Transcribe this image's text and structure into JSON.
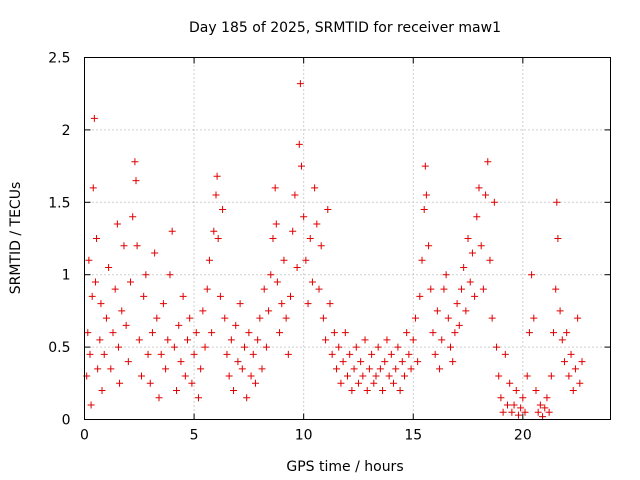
{
  "chart_data": {
    "type": "scatter",
    "title": "Day 185 of 2025, SRMTID for receiver maw1",
    "xlabel": "GPS time / hours",
    "ylabel": "SRMTID / TECUs",
    "xlim": [
      0,
      24
    ],
    "ylim": [
      0,
      2.5
    ],
    "xticks": [
      "0",
      "5",
      "10",
      "15",
      "20"
    ],
    "xtick_values": [
      0,
      5,
      10,
      15,
      20
    ],
    "yticks": [
      "0",
      "0.5",
      "1",
      "1.5",
      "2",
      "2.5"
    ],
    "ytick_values": [
      0,
      0.5,
      1,
      1.5,
      2,
      2.5
    ],
    "grid": true,
    "marker": "+",
    "color": "#e00000",
    "series": [
      {
        "name": "maw1",
        "points": [
          [
            0.1,
            0.3
          ],
          [
            0.15,
            0.6
          ],
          [
            0.2,
            1.1
          ],
          [
            0.25,
            0.45
          ],
          [
            0.3,
            0.1
          ],
          [
            0.35,
            0.85
          ],
          [
            0.4,
            1.6
          ],
          [
            0.45,
            2.08
          ],
          [
            0.5,
            0.95
          ],
          [
            0.55,
            1.25
          ],
          [
            0.6,
            0.35
          ],
          [
            0.7,
            0.55
          ],
          [
            0.75,
            0.8
          ],
          [
            0.8,
            0.2
          ],
          [
            0.9,
            0.45
          ],
          [
            1.0,
            0.7
          ],
          [
            1.1,
            1.05
          ],
          [
            1.2,
            0.35
          ],
          [
            1.3,
            0.6
          ],
          [
            1.4,
            0.9
          ],
          [
            1.5,
            1.35
          ],
          [
            1.55,
            0.5
          ],
          [
            1.6,
            0.25
          ],
          [
            1.7,
            0.75
          ],
          [
            1.8,
            1.2
          ],
          [
            1.9,
            0.65
          ],
          [
            2.0,
            0.4
          ],
          [
            2.1,
            0.95
          ],
          [
            2.2,
            1.4
          ],
          [
            2.3,
            1.78
          ],
          [
            2.35,
            1.65
          ],
          [
            2.4,
            1.2
          ],
          [
            2.5,
            0.55
          ],
          [
            2.6,
            0.3
          ],
          [
            2.7,
            0.85
          ],
          [
            2.8,
            1.0
          ],
          [
            2.9,
            0.45
          ],
          [
            3.0,
            0.25
          ],
          [
            3.1,
            0.6
          ],
          [
            3.2,
            1.15
          ],
          [
            3.3,
            0.7
          ],
          [
            3.4,
            0.15
          ],
          [
            3.5,
            0.45
          ],
          [
            3.6,
            0.8
          ],
          [
            3.7,
            0.35
          ],
          [
            3.8,
            0.55
          ],
          [
            3.9,
            1.0
          ],
          [
            4.0,
            1.3
          ],
          [
            4.1,
            0.5
          ],
          [
            4.2,
            0.2
          ],
          [
            4.3,
            0.65
          ],
          [
            4.4,
            0.4
          ],
          [
            4.5,
            0.85
          ],
          [
            4.6,
            0.3
          ],
          [
            4.7,
            0.55
          ],
          [
            4.8,
            0.7
          ],
          [
            4.9,
            0.25
          ],
          [
            5.0,
            0.45
          ],
          [
            5.1,
            0.6
          ],
          [
            5.2,
            0.15
          ],
          [
            5.3,
            0.35
          ],
          [
            5.4,
            0.75
          ],
          [
            5.5,
            0.5
          ],
          [
            5.6,
            0.9
          ],
          [
            5.7,
            1.1
          ],
          [
            5.8,
            0.6
          ],
          [
            5.9,
            1.3
          ],
          [
            6.0,
            1.55
          ],
          [
            6.05,
            1.68
          ],
          [
            6.1,
            1.25
          ],
          [
            6.2,
            0.85
          ],
          [
            6.3,
            1.45
          ],
          [
            6.4,
            0.7
          ],
          [
            6.5,
            0.45
          ],
          [
            6.6,
            0.3
          ],
          [
            6.7,
            0.55
          ],
          [
            6.8,
            0.2
          ],
          [
            6.9,
            0.65
          ],
          [
            7.0,
            0.4
          ],
          [
            7.1,
            0.8
          ],
          [
            7.2,
            0.35
          ],
          [
            7.3,
            0.5
          ],
          [
            7.4,
            0.15
          ],
          [
            7.5,
            0.6
          ],
          [
            7.6,
            0.3
          ],
          [
            7.7,
            0.45
          ],
          [
            7.8,
            0.25
          ],
          [
            7.9,
            0.55
          ],
          [
            8.0,
            0.7
          ],
          [
            8.1,
            0.35
          ],
          [
            8.2,
            0.9
          ],
          [
            8.3,
            0.5
          ],
          [
            8.4,
            0.75
          ],
          [
            8.5,
            1.0
          ],
          [
            8.6,
            1.25
          ],
          [
            8.7,
            1.6
          ],
          [
            8.75,
            1.35
          ],
          [
            8.8,
            0.95
          ],
          [
            8.9,
            0.6
          ],
          [
            9.0,
            0.8
          ],
          [
            9.1,
            1.1
          ],
          [
            9.2,
            0.7
          ],
          [
            9.3,
            0.45
          ],
          [
            9.4,
            0.85
          ],
          [
            9.5,
            1.3
          ],
          [
            9.6,
            1.55
          ],
          [
            9.7,
            1.05
          ],
          [
            9.8,
            1.9
          ],
          [
            9.85,
            2.32
          ],
          [
            9.9,
            1.75
          ],
          [
            10.0,
            1.4
          ],
          [
            10.1,
            1.1
          ],
          [
            10.2,
            0.8
          ],
          [
            10.3,
            1.25
          ],
          [
            10.4,
            0.95
          ],
          [
            10.5,
            1.6
          ],
          [
            10.6,
            1.35
          ],
          [
            10.7,
            0.9
          ],
          [
            10.8,
            1.2
          ],
          [
            10.9,
            0.7
          ],
          [
            11.0,
            0.55
          ],
          [
            11.1,
            1.45
          ],
          [
            11.2,
            0.8
          ],
          [
            11.3,
            0.45
          ],
          [
            11.4,
            0.6
          ],
          [
            11.5,
            0.35
          ],
          [
            11.6,
            0.5
          ],
          [
            11.7,
            0.25
          ],
          [
            11.8,
            0.4
          ],
          [
            11.9,
            0.6
          ],
          [
            12.0,
            0.3
          ],
          [
            12.1,
            0.45
          ],
          [
            12.2,
            0.2
          ],
          [
            12.3,
            0.35
          ],
          [
            12.4,
            0.5
          ],
          [
            12.5,
            0.25
          ],
          [
            12.6,
            0.4
          ],
          [
            12.7,
            0.3
          ],
          [
            12.8,
            0.55
          ],
          [
            12.9,
            0.2
          ],
          [
            13.0,
            0.35
          ],
          [
            13.1,
            0.45
          ],
          [
            13.2,
            0.25
          ],
          [
            13.3,
            0.3
          ],
          [
            13.4,
            0.5
          ],
          [
            13.5,
            0.35
          ],
          [
            13.6,
            0.2
          ],
          [
            13.7,
            0.4
          ],
          [
            13.8,
            0.55
          ],
          [
            13.9,
            0.3
          ],
          [
            14.0,
            0.45
          ],
          [
            14.1,
            0.25
          ],
          [
            14.2,
            0.35
          ],
          [
            14.3,
            0.5
          ],
          [
            14.4,
            0.2
          ],
          [
            14.5,
            0.4
          ],
          [
            14.6,
            0.3
          ],
          [
            14.7,
            0.6
          ],
          [
            14.8,
            0.45
          ],
          [
            14.9,
            0.35
          ],
          [
            15.0,
            0.55
          ],
          [
            15.1,
            0.7
          ],
          [
            15.2,
            0.4
          ],
          [
            15.3,
            0.85
          ],
          [
            15.4,
            1.1
          ],
          [
            15.5,
            1.45
          ],
          [
            15.55,
            1.75
          ],
          [
            15.6,
            1.55
          ],
          [
            15.7,
            1.2
          ],
          [
            15.8,
            0.9
          ],
          [
            15.9,
            0.6
          ],
          [
            16.0,
            0.45
          ],
          [
            16.1,
            0.75
          ],
          [
            16.2,
            0.35
          ],
          [
            16.3,
            0.55
          ],
          [
            16.4,
            0.9
          ],
          [
            16.5,
            1.0
          ],
          [
            16.6,
            0.7
          ],
          [
            16.7,
            0.5
          ],
          [
            16.8,
            0.4
          ],
          [
            16.9,
            0.6
          ],
          [
            17.0,
            0.8
          ],
          [
            17.1,
            0.65
          ],
          [
            17.2,
            0.9
          ],
          [
            17.3,
            1.05
          ],
          [
            17.4,
            0.75
          ],
          [
            17.5,
            1.25
          ],
          [
            17.6,
            0.95
          ],
          [
            17.7,
            1.15
          ],
          [
            17.8,
            0.85
          ],
          [
            17.9,
            1.4
          ],
          [
            18.0,
            1.6
          ],
          [
            18.1,
            1.2
          ],
          [
            18.2,
            0.9
          ],
          [
            18.3,
            1.55
          ],
          [
            18.4,
            1.78
          ],
          [
            18.5,
            1.1
          ],
          [
            18.6,
            0.7
          ],
          [
            18.7,
            1.5
          ],
          [
            18.8,
            0.5
          ],
          [
            18.9,
            0.3
          ],
          [
            19.0,
            0.15
          ],
          [
            19.1,
            0.05
          ],
          [
            19.2,
            0.45
          ],
          [
            19.3,
            0.1
          ],
          [
            19.4,
            0.25
          ],
          [
            19.5,
            0.05
          ],
          [
            19.6,
            0.1
          ],
          [
            19.7,
            0.2
          ],
          [
            19.8,
            0.03
          ],
          [
            19.9,
            0.08
          ],
          [
            20.0,
            0.15
          ],
          [
            20.1,
            0.05
          ],
          [
            20.2,
            0.3
          ],
          [
            20.3,
            0.6
          ],
          [
            20.4,
            1.0
          ],
          [
            20.5,
            0.7
          ],
          [
            20.6,
            0.2
          ],
          [
            20.7,
            0.05
          ],
          [
            20.8,
            0.1
          ],
          [
            20.9,
            0.02
          ],
          [
            21.0,
            0.08
          ],
          [
            21.1,
            0.15
          ],
          [
            21.2,
            0.05
          ],
          [
            21.3,
            0.3
          ],
          [
            21.4,
            0.6
          ],
          [
            21.5,
            0.9
          ],
          [
            21.55,
            1.5
          ],
          [
            21.6,
            1.25
          ],
          [
            21.7,
            0.75
          ],
          [
            21.8,
            0.55
          ],
          [
            21.9,
            0.4
          ],
          [
            22.0,
            0.6
          ],
          [
            22.1,
            0.3
          ],
          [
            22.2,
            0.45
          ],
          [
            22.3,
            0.2
          ],
          [
            22.4,
            0.35
          ],
          [
            22.5,
            0.7
          ],
          [
            22.6,
            0.25
          ],
          [
            22.7,
            0.4
          ]
        ]
      }
    ]
  }
}
